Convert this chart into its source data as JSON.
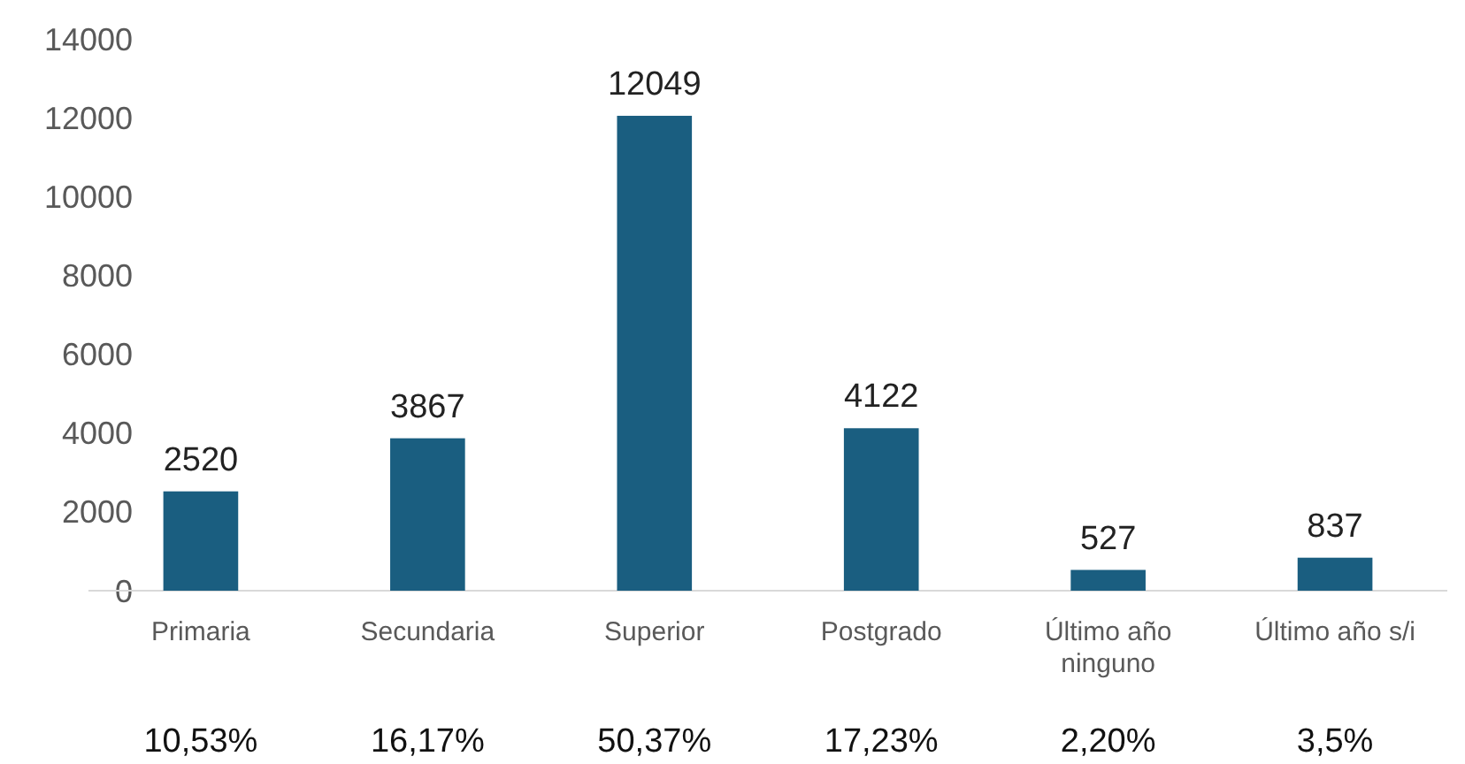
{
  "chart_data": {
    "type": "bar",
    "categories": [
      "Primaria",
      "Secundaria",
      "Superior",
      "Postgrado",
      "Último año ninguno",
      "Último año s/i"
    ],
    "values": [
      2520,
      3867,
      12049,
      4122,
      527,
      837
    ],
    "color": "#1a5e80",
    "ylim": [
      0,
      14000
    ],
    "yticks": [
      0,
      2000,
      4000,
      6000,
      8000,
      10000,
      12000,
      14000
    ],
    "grid": false,
    "data_labels": true,
    "annotations": [
      "10,53%",
      "16,17%",
      "50,37%",
      "17,23%",
      "2,20%",
      "3,5%"
    ]
  }
}
